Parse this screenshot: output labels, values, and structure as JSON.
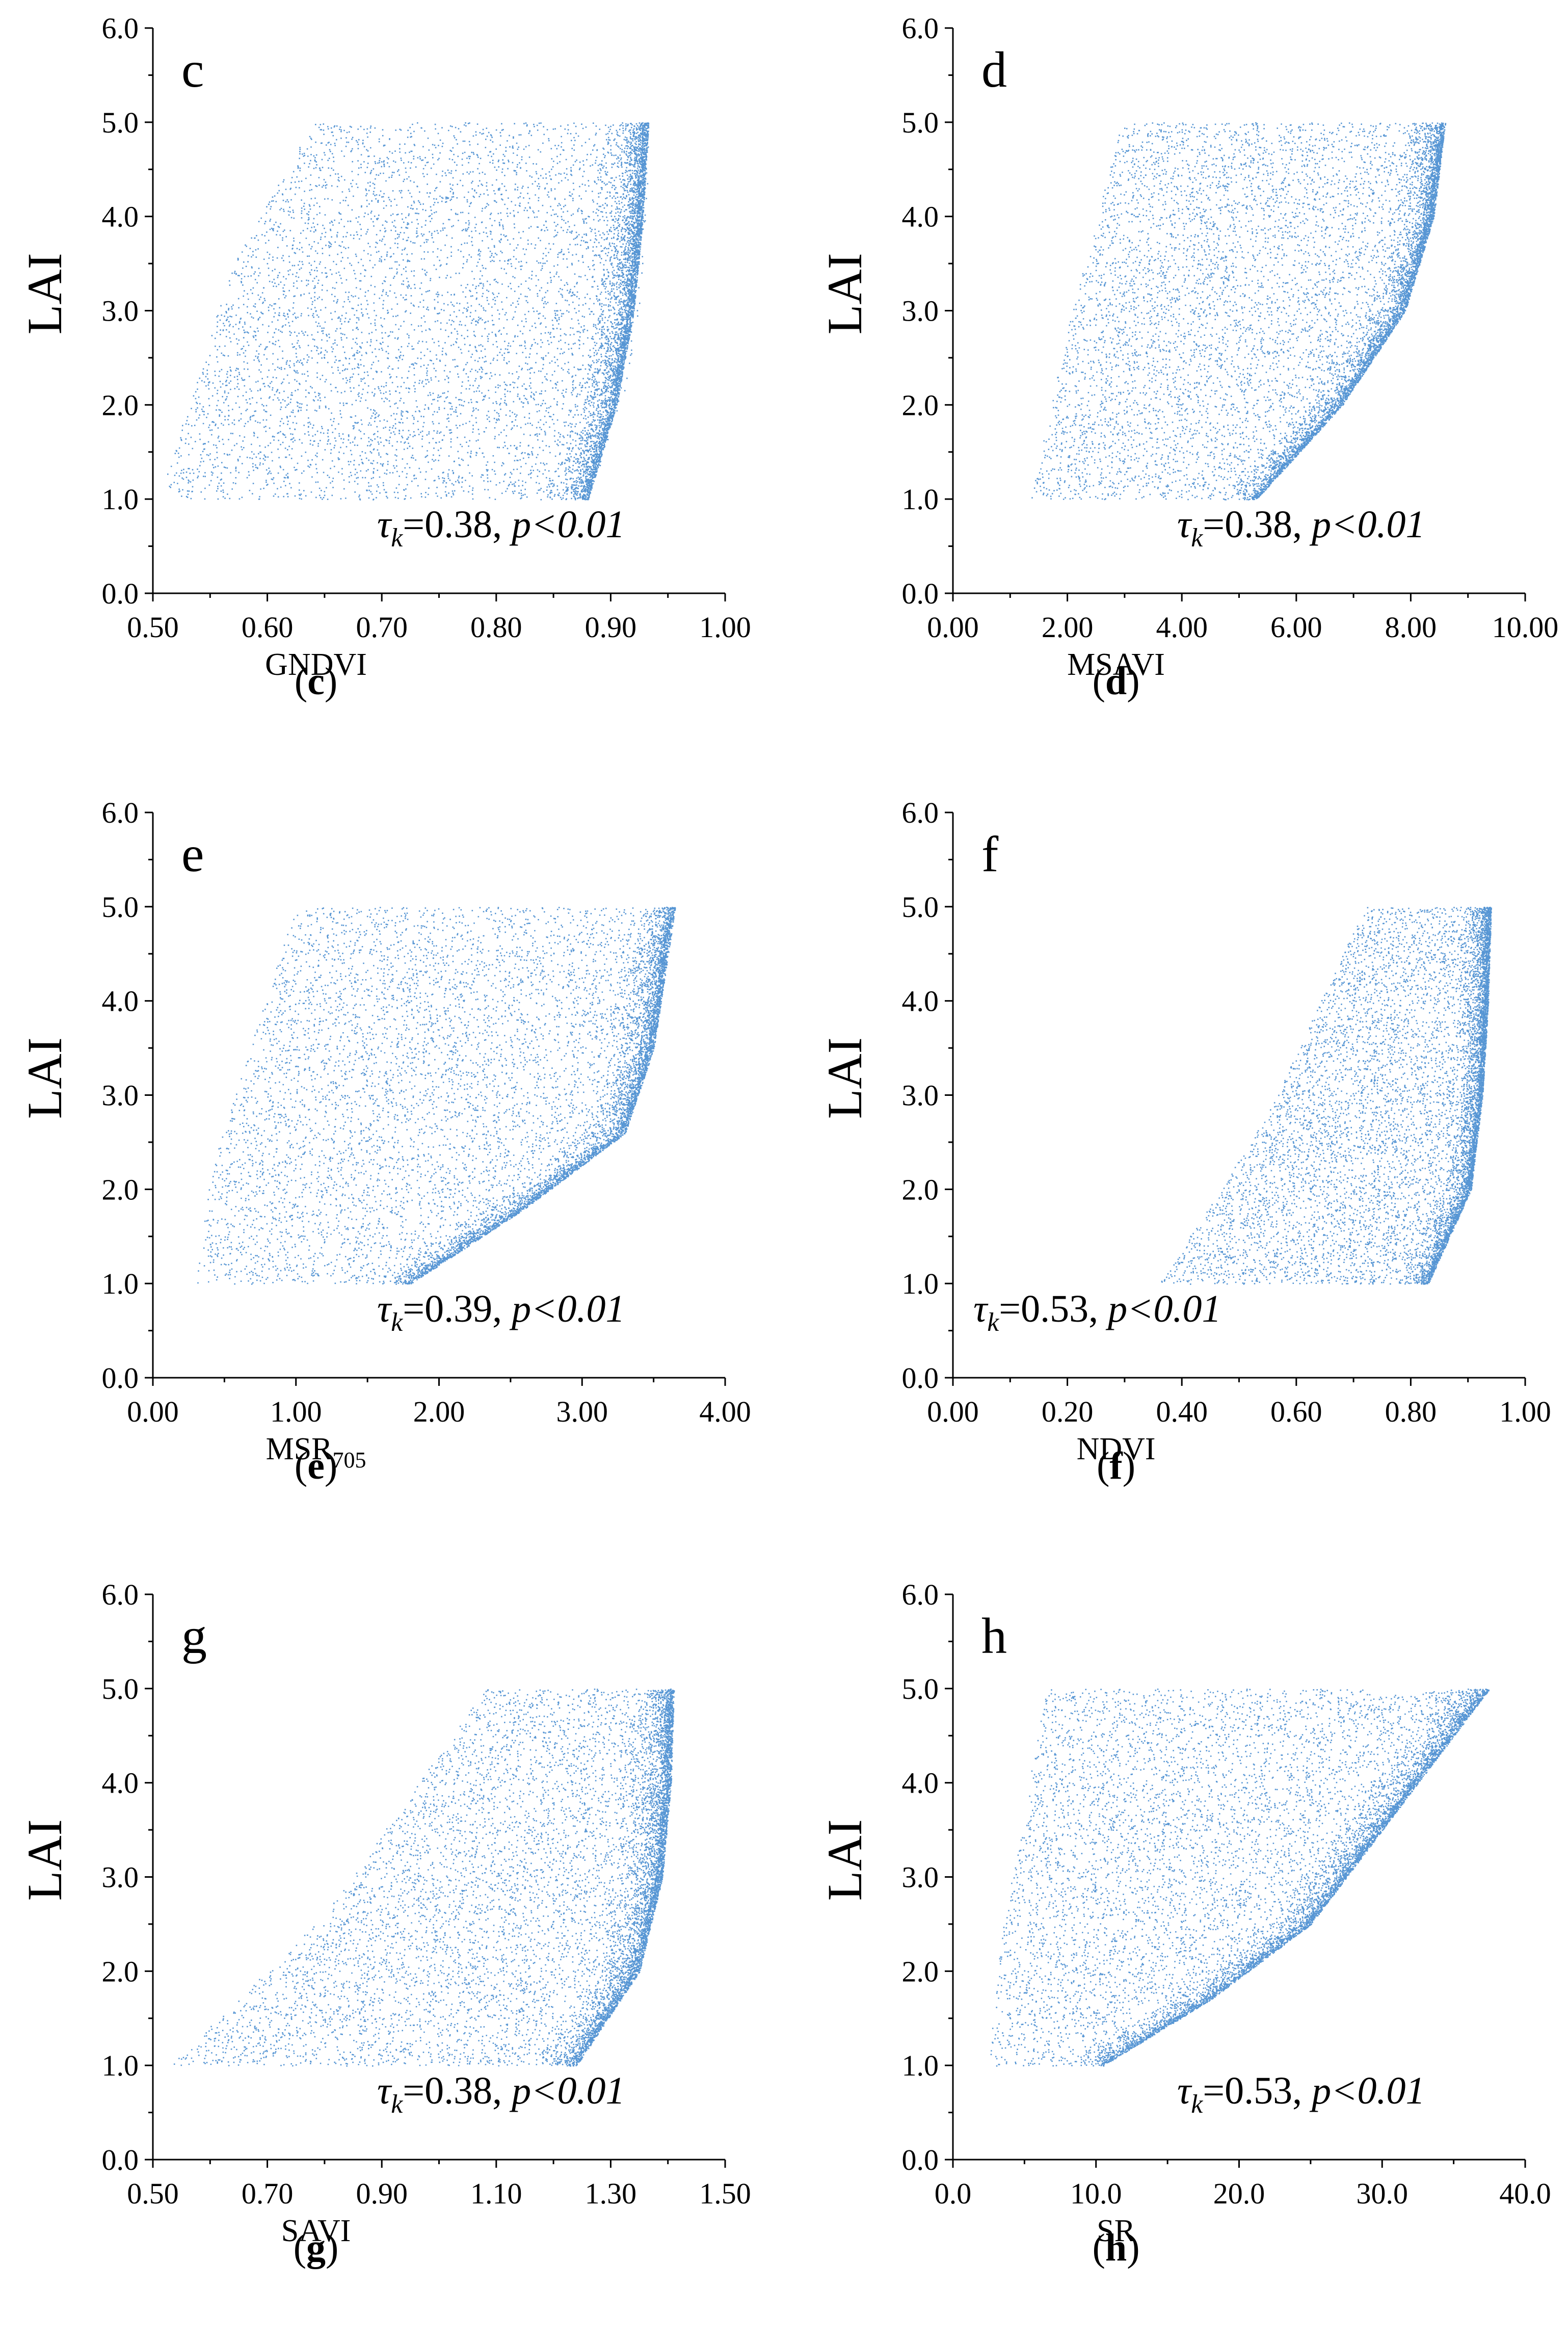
{
  "figure": {
    "accent_color": "#2878c8",
    "panels": [
      {
        "id": "c",
        "panel_letter": "c",
        "caption_open": "(",
        "caption_letter": "c",
        "caption_close": ")",
        "ylabel": "LAI",
        "xlabel": "GNDVI",
        "xlabel_sub": "",
        "stat_tau": "τ",
        "stat_tau_sub": "k",
        "stat_value": "=0.38, ",
        "stat_p": "p<0.01",
        "xticks": [
          "0.50",
          "0.60",
          "0.70",
          "0.80",
          "0.90",
          "1.00"
        ],
        "yticks": [
          "0.0",
          "1.0",
          "2.0",
          "3.0",
          "4.0",
          "5.0",
          "6.0"
        ]
      },
      {
        "id": "d",
        "panel_letter": "d",
        "caption_open": "(",
        "caption_letter": "d",
        "caption_close": ")",
        "ylabel": "LAI",
        "xlabel": "MSAVI",
        "xlabel_sub": "",
        "stat_tau": "τ",
        "stat_tau_sub": "k",
        "stat_value": "=0.38, ",
        "stat_p": "p<0.01",
        "xticks": [
          "0.00",
          "2.00",
          "4.00",
          "6.00",
          "8.00",
          "10.00"
        ],
        "yticks": [
          "0.0",
          "1.0",
          "2.0",
          "3.0",
          "4.0",
          "5.0",
          "6.0"
        ]
      },
      {
        "id": "e",
        "panel_letter": "e",
        "caption_open": "(",
        "caption_letter": "e",
        "caption_close": ")",
        "ylabel": "LAI",
        "xlabel": "MSR",
        "xlabel_sub": "705",
        "stat_tau": "τ",
        "stat_tau_sub": "k",
        "stat_value": "=0.39, ",
        "stat_p": "p<0.01",
        "xticks": [
          "0.00",
          "1.00",
          "2.00",
          "3.00",
          "4.00"
        ],
        "yticks": [
          "0.0",
          "1.0",
          "2.0",
          "3.0",
          "4.0",
          "5.0",
          "6.0"
        ]
      },
      {
        "id": "f",
        "panel_letter": "f",
        "caption_open": "(",
        "caption_letter": "f",
        "caption_close": ")",
        "ylabel": "LAI",
        "xlabel": "NDVI",
        "xlabel_sub": "",
        "stat_tau": "τ",
        "stat_tau_sub": "k",
        "stat_value": "=0.53, ",
        "stat_p": "p<0.01",
        "xticks": [
          "0.00",
          "0.20",
          "0.40",
          "0.60",
          "0.80",
          "1.00"
        ],
        "yticks": [
          "0.0",
          "1.0",
          "2.0",
          "3.0",
          "4.0",
          "5.0",
          "6.0"
        ]
      },
      {
        "id": "g",
        "panel_letter": "g",
        "caption_open": "(",
        "caption_letter": "g",
        "caption_close": ")",
        "ylabel": "LAI",
        "xlabel": "SAVI",
        "xlabel_sub": "",
        "stat_tau": "τ",
        "stat_tau_sub": "k",
        "stat_value": "=0.38, ",
        "stat_p": "p<0.01",
        "xticks": [
          "0.50",
          "0.70",
          "0.90",
          "1.10",
          "1.30",
          "1.50"
        ],
        "yticks": [
          "0.0",
          "1.0",
          "2.0",
          "3.0",
          "4.0",
          "5.0",
          "6.0"
        ]
      },
      {
        "id": "h",
        "panel_letter": "h",
        "caption_open": "(",
        "caption_letter": "h",
        "caption_close": ")",
        "ylabel": "LAI",
        "xlabel": "SR",
        "xlabel_sub": "",
        "stat_tau": "τ",
        "stat_tau_sub": "k",
        "stat_value": "=0.53, ",
        "stat_p": "p<0.01",
        "xticks": [
          "0.0",
          "10.0",
          "20.0",
          "30.0",
          "40.0"
        ],
        "yticks": [
          "0.0",
          "1.0",
          "2.0",
          "3.0",
          "4.0",
          "5.0",
          "6.0"
        ]
      }
    ]
  },
  "chart_data": [
    {
      "type": "scatter",
      "panel": "c",
      "title": "",
      "xlabel": "GNDVI",
      "ylabel": "LAI",
      "xlim": [
        0.5,
        1.0
      ],
      "ylim": [
        0,
        6
      ],
      "x_minor_step": 0.05,
      "y_minor_step": 0.5,
      "annotation": "τk=0.38, p<0.01",
      "tau_k": 0.38,
      "p_value": "<0.01",
      "lai_range": [
        1.0,
        5.0
      ],
      "point_cloud_envelope": [
        [
          0.52,
          1.0
        ],
        [
          0.88,
          1.0
        ],
        [
          0.91,
          2.0
        ],
        [
          0.925,
          3.0
        ],
        [
          0.93,
          4.0
        ],
        [
          0.935,
          5.0
        ],
        [
          0.64,
          5.0
        ],
        [
          0.57,
          3.5
        ],
        [
          0.51,
          1.2
        ]
      ],
      "density_ridge": [
        [
          0.88,
          1.0
        ],
        [
          0.905,
          2.0
        ],
        [
          0.92,
          3.0
        ],
        [
          0.928,
          4.0
        ],
        [
          0.933,
          5.0
        ]
      ],
      "grid": false,
      "legend": "none"
    },
    {
      "type": "scatter",
      "panel": "d",
      "title": "",
      "xlabel": "MSAVI",
      "ylabel": "LAI",
      "xlim": [
        0,
        10
      ],
      "ylim": [
        0,
        6
      ],
      "x_minor_step": 1.0,
      "y_minor_step": 0.5,
      "annotation": "τk=0.38, p<0.01",
      "tau_k": 0.38,
      "p_value": "<0.01",
      "lai_range": [
        1.0,
        5.0
      ],
      "point_cloud_envelope": [
        [
          1.35,
          1.0
        ],
        [
          5.3,
          1.0
        ],
        [
          6.8,
          2.0
        ],
        [
          7.9,
          3.0
        ],
        [
          8.4,
          4.0
        ],
        [
          8.6,
          5.0
        ],
        [
          2.95,
          5.0
        ],
        [
          2.0,
          2.8
        ]
      ],
      "density_ridge": [
        [
          5.3,
          1.0
        ],
        [
          6.8,
          2.0
        ],
        [
          7.9,
          3.0
        ],
        [
          8.4,
          4.0
        ],
        [
          8.6,
          5.0
        ]
      ],
      "grid": false,
      "legend": "none"
    },
    {
      "type": "scatter",
      "panel": "e",
      "title": "",
      "xlabel": "MSR705",
      "ylabel": "LAI",
      "xlim": [
        0,
        4
      ],
      "ylim": [
        0,
        6
      ],
      "x_minor_step": 0.5,
      "y_minor_step": 0.5,
      "annotation": "τk=0.39, p<0.01",
      "tau_k": 0.39,
      "p_value": "<0.01",
      "lai_range": [
        1.0,
        5.0
      ],
      "point_cloud_envelope": [
        [
          0.3,
          1.0
        ],
        [
          1.8,
          1.0
        ],
        [
          2.6,
          1.8
        ],
        [
          3.3,
          2.6
        ],
        [
          3.5,
          3.5
        ],
        [
          3.65,
          5.0
        ],
        [
          1.0,
          5.0
        ],
        [
          0.4,
          2.2
        ]
      ],
      "density_ridge": [
        [
          1.8,
          1.0
        ],
        [
          2.6,
          1.8
        ],
        [
          3.3,
          2.6
        ],
        [
          3.5,
          3.5
        ],
        [
          3.65,
          5.0
        ]
      ],
      "grid": false,
      "legend": "none"
    },
    {
      "type": "scatter",
      "panel": "f",
      "title": "",
      "xlabel": "NDVI",
      "ylabel": "LAI",
      "xlim": [
        0,
        1
      ],
      "ylim": [
        0,
        6
      ],
      "x_minor_step": 0.1,
      "y_minor_step": 0.5,
      "annotation": "τk=0.53, p<0.01",
      "tau_k": 0.53,
      "p_value": "<0.01",
      "lai_range": [
        1.0,
        5.0
      ],
      "point_cloud_envelope": [
        [
          0.36,
          1.0
        ],
        [
          0.83,
          1.0
        ],
        [
          0.905,
          2.0
        ],
        [
          0.925,
          3.0
        ],
        [
          0.935,
          4.0
        ],
        [
          0.94,
          5.0
        ],
        [
          0.72,
          5.0
        ],
        [
          0.55,
          2.8
        ]
      ],
      "density_ridge": [
        [
          0.83,
          1.0
        ],
        [
          0.905,
          2.0
        ],
        [
          0.925,
          3.0
        ],
        [
          0.935,
          4.0
        ],
        [
          0.94,
          5.0
        ]
      ],
      "grid": false,
      "legend": "none"
    },
    {
      "type": "scatter",
      "panel": "g",
      "title": "",
      "xlabel": "SAVI",
      "ylabel": "LAI",
      "xlim": [
        0.5,
        1.5
      ],
      "ylim": [
        0,
        6
      ],
      "x_minor_step": 0.1,
      "y_minor_step": 0.5,
      "annotation": "τk=0.38, p<0.01",
      "tau_k": 0.38,
      "p_value": "<0.01",
      "lai_range": [
        1.0,
        5.0
      ],
      "point_cloud_envelope": [
        [
          0.53,
          1.0
        ],
        [
          1.24,
          1.0
        ],
        [
          1.35,
          2.0
        ],
        [
          1.39,
          3.0
        ],
        [
          1.405,
          4.0
        ],
        [
          1.41,
          5.0
        ],
        [
          1.08,
          5.0
        ],
        [
          0.8,
          2.6
        ]
      ],
      "density_ridge": [
        [
          1.24,
          1.0
        ],
        [
          1.35,
          2.0
        ],
        [
          1.39,
          3.0
        ],
        [
          1.405,
          4.0
        ],
        [
          1.41,
          5.0
        ]
      ],
      "grid": false,
      "legend": "none"
    },
    {
      "type": "scatter",
      "panel": "h",
      "title": "",
      "xlabel": "SR",
      "ylabel": "LAI",
      "xlim": [
        0,
        40
      ],
      "ylim": [
        0,
        6
      ],
      "x_minor_step": 5.0,
      "y_minor_step": 0.5,
      "annotation": "τk=0.53, p<0.01",
      "tau_k": 0.53,
      "p_value": "<0.01",
      "lai_range": [
        1.0,
        5.0
      ],
      "point_cloud_envelope": [
        [
          2.3,
          1.0
        ],
        [
          10.5,
          1.0
        ],
        [
          18.0,
          1.7
        ],
        [
          25.0,
          2.5
        ],
        [
          30.0,
          3.5
        ],
        [
          37.5,
          5.0
        ],
        [
          6.5,
          5.0
        ],
        [
          3.5,
          2.5
        ]
      ],
      "density_ridge": [
        [
          10.5,
          1.0
        ],
        [
          18.0,
          1.7
        ],
        [
          25.0,
          2.5
        ],
        [
          30.0,
          3.5
        ],
        [
          37.5,
          5.0
        ]
      ],
      "grid": false,
      "legend": "none"
    }
  ]
}
